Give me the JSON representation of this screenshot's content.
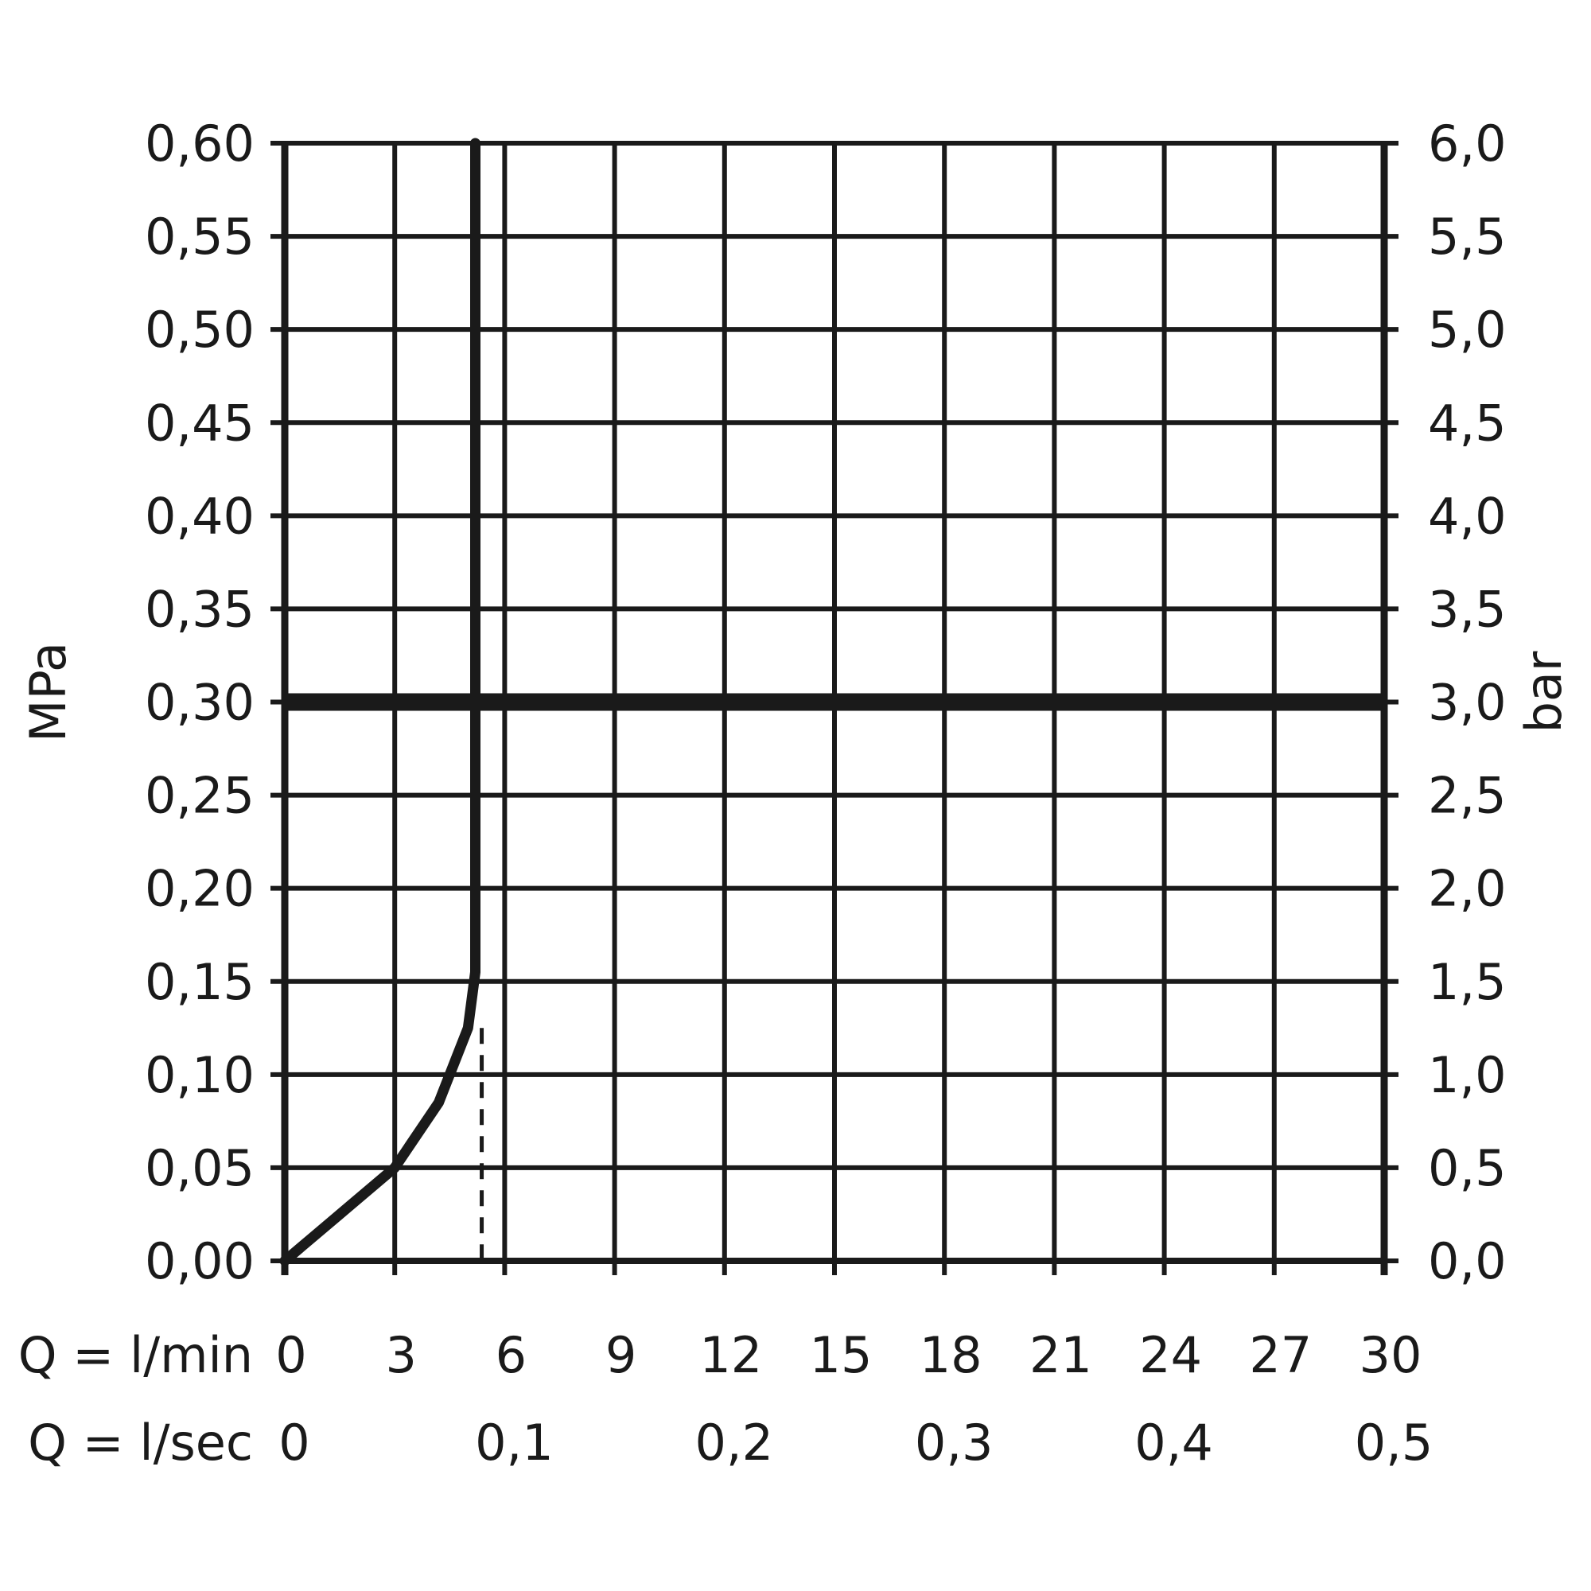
{
  "chart_data": {
    "type": "line",
    "title": "",
    "y_left": {
      "label": "MPa",
      "ylim": [
        0,
        0.6
      ],
      "ticks": [
        0,
        0.05,
        0.1,
        0.15,
        0.2,
        0.25,
        0.3,
        0.35,
        0.4,
        0.45,
        0.5,
        0.55,
        0.6
      ],
      "tick_labels": [
        "0,00",
        "0,05",
        "0,10",
        "0,15",
        "0,20",
        "0,25",
        "0,30",
        "0,35",
        "0,40",
        "0,45",
        "0,50",
        "0,55",
        "0,60"
      ]
    },
    "y_right": {
      "label": "bar",
      "ylim": [
        0,
        6
      ],
      "ticks": [
        0,
        0.5,
        1,
        1.5,
        2,
        2.5,
        3,
        3.5,
        4,
        4.5,
        5,
        5.5,
        6
      ],
      "tick_labels": [
        "0,0",
        "0,5",
        "1,0",
        "1,5",
        "2,0",
        "2,5",
        "3,0",
        "3,5",
        "4,0",
        "4,5",
        "5,0",
        "5,5",
        "6,0"
      ]
    },
    "x_lmin": {
      "label": "Q = l/min",
      "xlim": [
        0,
        30
      ],
      "ticks": [
        0,
        3,
        6,
        9,
        12,
        15,
        18,
        21,
        24,
        27,
        30
      ],
      "tick_labels": [
        "0",
        "3",
        "6",
        "9",
        "12",
        "15",
        "18",
        "21",
        "24",
        "27",
        "30"
      ]
    },
    "x_lsec": {
      "label": "Q = l/sec",
      "ticks_lmin": [
        0,
        6,
        12,
        18,
        24,
        30
      ],
      "tick_labels": [
        "0",
        "0,1",
        "0,2",
        "0,3",
        "0,4",
        "0,5"
      ]
    },
    "grid": true,
    "reference_line_mpa": 0.3,
    "dashed_marker_x": 5.2,
    "series": [
      {
        "x": [
          0,
          1.5,
          3,
          4.2,
          5.0,
          5.2,
          5.2
        ],
        "y": [
          0,
          0.025,
          0.05,
          0.085,
          0.125,
          0.155,
          0.6
        ]
      }
    ]
  }
}
